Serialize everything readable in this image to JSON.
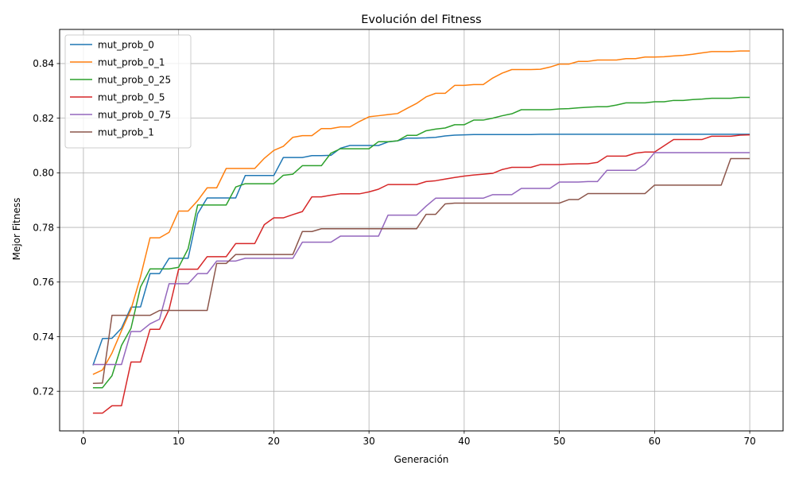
{
  "chart_data": {
    "type": "line",
    "title": "Evolución del Fitness",
    "xlabel": "Generación",
    "ylabel": "Mejor Fitness",
    "xlim": [
      -2.5,
      73.5
    ],
    "ylim": [
      0.7055,
      0.8525
    ],
    "xticks": [
      0,
      10,
      20,
      30,
      40,
      50,
      60,
      70
    ],
    "yticks": [
      0.72,
      0.74,
      0.76,
      0.78,
      0.8,
      0.82,
      0.84
    ],
    "ytick_labels": [
      "0.72",
      "0.74",
      "0.76",
      "0.78",
      "0.80",
      "0.82",
      "0.84"
    ],
    "grid": true,
    "legend_position": "upper-left",
    "x": [
      1,
      2,
      3,
      4,
      5,
      6,
      7,
      8,
      9,
      10,
      11,
      12,
      13,
      14,
      15,
      16,
      17,
      18,
      19,
      20,
      21,
      22,
      23,
      24,
      25,
      26,
      27,
      28,
      29,
      30,
      31,
      32,
      33,
      34,
      35,
      36,
      37,
      38,
      39,
      40,
      41,
      42,
      43,
      44,
      45,
      46,
      47,
      48,
      49,
      50,
      51,
      52,
      53,
      54,
      55,
      56,
      57,
      58,
      59,
      60,
      61,
      62,
      63,
      64,
      65,
      66,
      67,
      68,
      69,
      70
    ],
    "series": [
      {
        "name": "mut_prob_0",
        "color": "#1f77b4",
        "values": [
          0.7295,
          0.7393,
          0.7394,
          0.7431,
          0.7508,
          0.7509,
          0.7631,
          0.7631,
          0.7687,
          0.7687,
          0.7687,
          0.785,
          0.7908,
          0.7908,
          0.7908,
          0.7908,
          0.799,
          0.799,
          0.799,
          0.799,
          0.8056,
          0.8056,
          0.8056,
          0.8063,
          0.8063,
          0.8064,
          0.809,
          0.81,
          0.81,
          0.81,
          0.81,
          0.8113,
          0.8117,
          0.8127,
          0.8127,
          0.8128,
          0.813,
          0.8135,
          0.8138,
          0.8139,
          0.814,
          0.814,
          0.814,
          0.814,
          0.814,
          0.814,
          0.814,
          0.8141,
          0.8141,
          0.8141,
          0.8141,
          0.8141,
          0.8141,
          0.8141,
          0.8141,
          0.8141,
          0.8141,
          0.8141,
          0.8141,
          0.8141,
          0.8141,
          0.8141,
          0.8141,
          0.8141,
          0.8141,
          0.8141,
          0.8141,
          0.8141,
          0.8141,
          0.8141
        ]
      },
      {
        "name": "mut_prob_0_1",
        "color": "#ff7f0e",
        "values": [
          0.7262,
          0.7278,
          0.734,
          0.7422,
          0.75,
          0.762,
          0.7762,
          0.7762,
          0.7782,
          0.786,
          0.786,
          0.7898,
          0.7945,
          0.7945,
          0.8016,
          0.8016,
          0.8016,
          0.8016,
          0.8053,
          0.8082,
          0.8097,
          0.813,
          0.8136,
          0.8136,
          0.8162,
          0.8162,
          0.8168,
          0.8168,
          0.8188,
          0.8205,
          0.8209,
          0.8213,
          0.8217,
          0.8236,
          0.8254,
          0.8278,
          0.8291,
          0.8291,
          0.832,
          0.832,
          0.8323,
          0.8323,
          0.8347,
          0.8365,
          0.8378,
          0.8378,
          0.8378,
          0.8379,
          0.8387,
          0.8398,
          0.8398,
          0.8408,
          0.8408,
          0.8413,
          0.8413,
          0.8413,
          0.8418,
          0.8418,
          0.8424,
          0.8424,
          0.8425,
          0.8428,
          0.843,
          0.8434,
          0.8439,
          0.8444,
          0.8444,
          0.8444,
          0.8446,
          0.8446
        ]
      },
      {
        "name": "mut_prob_0_25",
        "color": "#2ca02c",
        "values": [
          0.7213,
          0.7213,
          0.7257,
          0.7368,
          0.7431,
          0.7582,
          0.7648,
          0.7648,
          0.7648,
          0.7654,
          0.7722,
          0.7882,
          0.7882,
          0.7882,
          0.7882,
          0.7948,
          0.796,
          0.796,
          0.796,
          0.796,
          0.7991,
          0.7995,
          0.8026,
          0.8026,
          0.8026,
          0.8072,
          0.8088,
          0.8088,
          0.8088,
          0.8088,
          0.8114,
          0.8114,
          0.8117,
          0.8137,
          0.8137,
          0.8154,
          0.816,
          0.8164,
          0.8176,
          0.8176,
          0.8193,
          0.8193,
          0.82,
          0.8209,
          0.8216,
          0.8231,
          0.8231,
          0.8231,
          0.8231,
          0.8234,
          0.8235,
          0.8238,
          0.824,
          0.8242,
          0.8242,
          0.8248,
          0.8256,
          0.8256,
          0.8256,
          0.826,
          0.826,
          0.8265,
          0.8265,
          0.8268,
          0.827,
          0.8273,
          0.8273,
          0.8273,
          0.8276,
          0.8276
        ]
      },
      {
        "name": "mut_prob_0_5",
        "color": "#d62728",
        "values": [
          0.712,
          0.712,
          0.7147,
          0.7147,
          0.7307,
          0.7307,
          0.7427,
          0.7427,
          0.75,
          0.7647,
          0.7647,
          0.7647,
          0.7693,
          0.7693,
          0.7693,
          0.7741,
          0.7741,
          0.7741,
          0.781,
          0.7835,
          0.7835,
          0.7847,
          0.7858,
          0.7912,
          0.7912,
          0.7918,
          0.7923,
          0.7923,
          0.7923,
          0.793,
          0.794,
          0.7957,
          0.7957,
          0.7957,
          0.7957,
          0.7968,
          0.7971,
          0.7977,
          0.7983,
          0.7988,
          0.7992,
          0.7995,
          0.7998,
          0.8012,
          0.802,
          0.802,
          0.802,
          0.803,
          0.803,
          0.803,
          0.8032,
          0.8033,
          0.8033,
          0.8038,
          0.8061,
          0.8061,
          0.8061,
          0.8072,
          0.8076,
          0.8076,
          0.8099,
          0.8122,
          0.8122,
          0.8122,
          0.8122,
          0.8134,
          0.8134,
          0.8134,
          0.8138,
          0.8139
        ]
      },
      {
        "name": "mut_prob_0_75",
        "color": "#9467bd",
        "values": [
          0.7298,
          0.7298,
          0.7298,
          0.7298,
          0.7419,
          0.7419,
          0.7447,
          0.7464,
          0.7594,
          0.7594,
          0.7594,
          0.7631,
          0.7631,
          0.7677,
          0.7677,
          0.7677,
          0.7687,
          0.7687,
          0.7687,
          0.7687,
          0.7687,
          0.7687,
          0.7746,
          0.7746,
          0.7746,
          0.7746,
          0.7768,
          0.7768,
          0.7768,
          0.7768,
          0.7768,
          0.7845,
          0.7845,
          0.7845,
          0.7845,
          0.7878,
          0.7907,
          0.7907,
          0.7907,
          0.7907,
          0.7907,
          0.7907,
          0.792,
          0.792,
          0.792,
          0.7943,
          0.7943,
          0.7943,
          0.7943,
          0.7966,
          0.7966,
          0.7966,
          0.7968,
          0.7968,
          0.8009,
          0.8009,
          0.8009,
          0.8009,
          0.8032,
          0.8074,
          0.8074,
          0.8074,
          0.8074,
          0.8074,
          0.8074,
          0.8074,
          0.8074,
          0.8074,
          0.8074,
          0.8074
        ]
      },
      {
        "name": "mut_prob_1",
        "color": "#8c564b",
        "values": [
          0.7229,
          0.723,
          0.7478,
          0.7478,
          0.7478,
          0.7478,
          0.7478,
          0.7496,
          0.7496,
          0.7496,
          0.7496,
          0.7496,
          0.7496,
          0.7668,
          0.7668,
          0.7701,
          0.7701,
          0.7701,
          0.7701,
          0.7701,
          0.7701,
          0.7701,
          0.7785,
          0.7785,
          0.7795,
          0.7795,
          0.7795,
          0.7795,
          0.7795,
          0.7795,
          0.7795,
          0.7795,
          0.7795,
          0.7795,
          0.7795,
          0.7848,
          0.7848,
          0.7886,
          0.7889,
          0.7889,
          0.7889,
          0.7889,
          0.7889,
          0.7889,
          0.7889,
          0.7889,
          0.7889,
          0.7889,
          0.7889,
          0.7889,
          0.7902,
          0.7902,
          0.7924,
          0.7924,
          0.7924,
          0.7924,
          0.7924,
          0.7924,
          0.7924,
          0.7955,
          0.7955,
          0.7955,
          0.7955,
          0.7955,
          0.7955,
          0.7955,
          0.7955,
          0.8052,
          0.8052,
          0.8052
        ]
      }
    ]
  }
}
